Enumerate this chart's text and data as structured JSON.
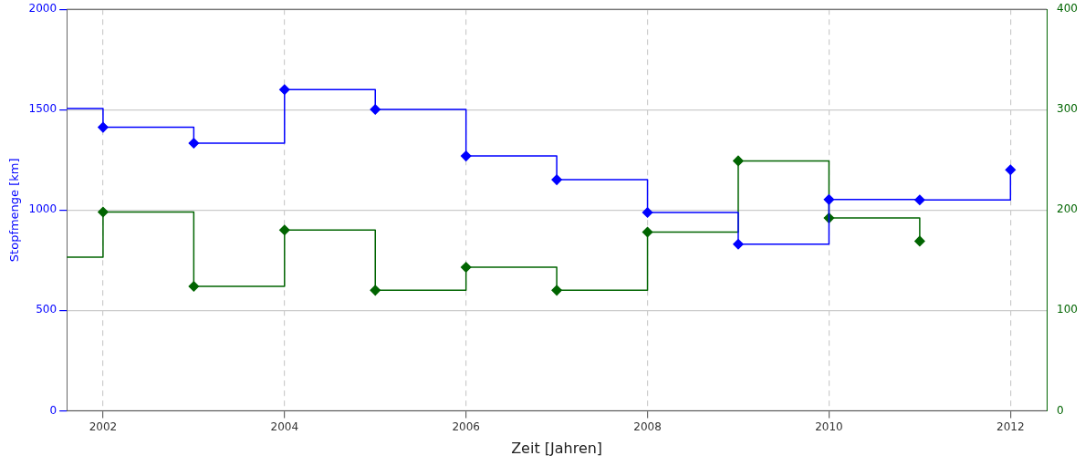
{
  "chart_data": {
    "type": "step",
    "xlabel": "Zeit [Jahren]",
    "ylabel": "Stopfmenge [km]",
    "xlim": [
      2001.6,
      2012.4
    ],
    "xticks": [
      2002,
      2004,
      2006,
      2008,
      2010,
      2012
    ],
    "ylim": [
      0,
      2000
    ],
    "yticks": [
      0,
      500,
      1000,
      1500,
      2000
    ],
    "y2lim": [
      0,
      400
    ],
    "y2ticks": [
      0,
      100,
      200,
      300,
      400
    ],
    "grid": true,
    "legend": false,
    "marker": "diamond",
    "line_style": "solid",
    "series": [
      {
        "color": "#0000ff",
        "x": [
          2001.6,
          2002,
          2003,
          2004,
          2005,
          2006,
          2007,
          2008,
          2009,
          2010,
          2011,
          2012
        ],
        "values": [
          1506,
          1412,
          1333,
          1600,
          1501,
          1269,
          1151,
          988,
          830,
          1052,
          1050,
          1200
        ]
      },
      {
        "color": "#006400",
        "axis": "y2",
        "x": [
          2001.6,
          2002,
          2003,
          2004,
          2005,
          2006,
          2007,
          2008,
          2009,
          2010,
          2011
        ],
        "values": [
          153,
          198,
          124,
          180,
          120,
          143,
          120,
          178,
          249,
          192,
          169
        ]
      }
    ]
  }
}
